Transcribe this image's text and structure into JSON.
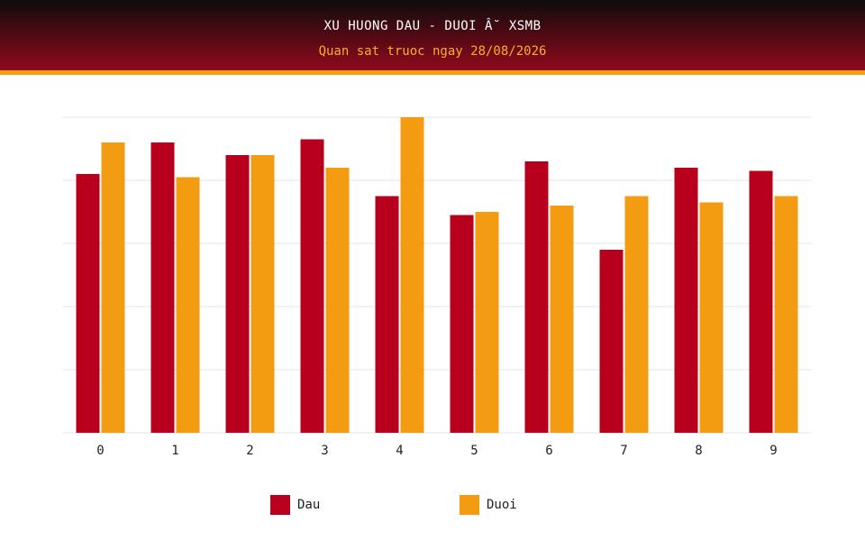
{
  "header": {
    "title": "XU HUONG DAU - DUOI Â˘ XSMB",
    "subtitle": "Quan sat truoc ngay 28/08/2026"
  },
  "colors": {
    "dau": "#b8001e",
    "duoi": "#f39c11",
    "grid": "#e6e6e6",
    "header_accent": "#f4a012"
  },
  "legend": [
    {
      "name": "Dau",
      "color": "#b8001e"
    },
    {
      "name": "Duoi",
      "color": "#f39c11"
    }
  ],
  "chart_data": {
    "type": "bar",
    "title": "XU HUONG DAU - DUOI Â˘ XSMB",
    "subtitle": "Quan sat truoc ngay 28/08/2026",
    "categories": [
      "0",
      "1",
      "2",
      "3",
      "4",
      "5",
      "6",
      "7",
      "8",
      "9"
    ],
    "series": [
      {
        "name": "Dau",
        "values": [
          41,
          46,
          44,
          46.5,
          37.5,
          34.5,
          43,
          29,
          42,
          41.5
        ]
      },
      {
        "name": "Duoi",
        "values": [
          46,
          40.5,
          44,
          42,
          50,
          35,
          36,
          37.5,
          36.5,
          37.5
        ]
      }
    ],
    "ylim": [
      0,
      50
    ],
    "y_gridlines": [
      0,
      10,
      20,
      30,
      40,
      50
    ],
    "y_tick_labels_shown": false,
    "grid": true,
    "legend_position": "bottom-center"
  }
}
